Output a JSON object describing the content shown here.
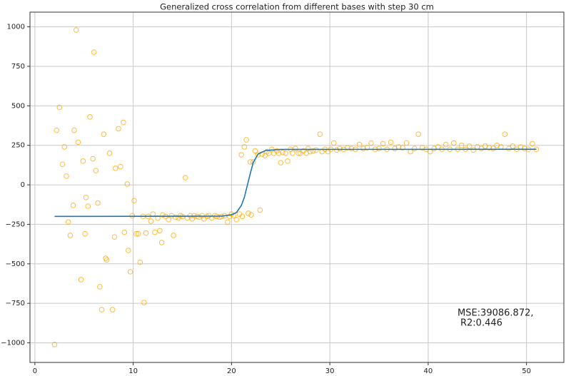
{
  "chart_data": {
    "type": "scatter",
    "title": "Generalized cross correlation from different bases with step 30 cm",
    "annotation": [
      "MSE:39086.872,",
      "R2:0.446"
    ],
    "xlim": [
      -0.5,
      53.8
    ],
    "ylim": [
      -1124,
      1093
    ],
    "xticks": [
      0,
      10,
      20,
      30,
      40,
      50
    ],
    "yticks": [
      {
        "value": -1000,
        "label": "−1000"
      },
      {
        "value": -750,
        "label": "−750"
      },
      {
        "value": -500,
        "label": "−500"
      },
      {
        "value": -250,
        "label": "−250"
      },
      0,
      250,
      500,
      750,
      1000
    ],
    "grid": true,
    "series": [
      {
        "type": "scatter",
        "color": "#ffa500",
        "x": [
          2,
          2.2,
          2.5,
          2.8,
          3,
          3.2,
          3.4,
          3.6,
          3.9,
          4,
          4.2,
          4.4,
          4.7,
          4.9,
          5.1,
          5.2,
          5.4,
          5.6,
          5.9,
          6,
          6.2,
          6.4,
          6.6,
          6.8,
          7,
          7.2,
          7.3,
          7.6,
          7.9,
          8.1,
          8.2,
          8.5,
          8.7,
          9,
          9.1,
          9.4,
          9.5,
          9.7,
          9.9,
          10.1,
          10.3,
          10.5,
          10.7,
          11,
          11.1,
          11.3,
          11.5,
          11.8,
          12,
          12.2,
          12.5,
          12.7,
          12.9,
          13,
          13.3,
          13.6,
          13.9,
          14.1,
          14.3,
          14.6,
          14.8,
          15,
          15.3,
          15.5,
          15.8,
          16,
          16.2,
          16.5,
          16.7,
          17,
          17.2,
          17.5,
          17.7,
          18,
          18.3,
          18.5,
          18.8,
          19,
          19.3,
          19.6,
          19.8,
          20,
          20.2,
          20.5,
          20.8,
          21,
          21.1,
          21.3,
          21.5,
          21.7,
          21.9,
          22,
          22.2,
          22.4,
          22.7,
          22.9,
          23.1,
          23.4,
          23.6,
          23.8,
          24.1,
          24.3,
          24.6,
          24.8,
          25,
          25.2,
          25.5,
          25.7,
          26,
          26.2,
          26.5,
          26.8,
          27,
          27.3,
          27.6,
          27.8,
          28,
          28.3,
          28.6,
          29,
          29.2,
          29.5,
          29.8,
          30.1,
          30.4,
          30.7,
          31,
          31.4,
          31.8,
          32.2,
          32.6,
          33,
          33.4,
          33.8,
          34.2,
          34.6,
          35,
          35.4,
          35.8,
          36.2,
          36.6,
          37,
          37.4,
          37.8,
          38.2,
          38.6,
          39,
          39.4,
          39.8,
          40.2,
          40.6,
          41,
          41.4,
          41.8,
          42.2,
          42.6,
          43,
          43.4,
          43.8,
          44.2,
          44.6,
          45,
          45.4,
          45.8,
          46.2,
          46.6,
          47,
          47.4,
          47.8,
          48.2,
          48.6,
          49,
          49.4,
          49.8,
          50.2,
          50.6,
          51
        ],
        "values": [
          -1010,
          345,
          490,
          130,
          240,
          55,
          -235,
          -320,
          -130,
          345,
          980,
          270,
          -600,
          150,
          -310,
          -80,
          -135,
          430,
          165,
          840,
          90,
          -115,
          -645,
          -790,
          320,
          -465,
          -475,
          200,
          -790,
          -330,
          105,
          355,
          115,
          395,
          -300,
          5,
          -415,
          -550,
          -195,
          -100,
          -310,
          -310,
          -490,
          -200,
          -745,
          -305,
          -200,
          -230,
          -185,
          -300,
          -210,
          -290,
          -365,
          -190,
          -200,
          -220,
          -195,
          -320,
          -205,
          -210,
          -195,
          -200,
          45,
          -210,
          -195,
          -215,
          -195,
          -200,
          -205,
          -195,
          -215,
          -200,
          -195,
          -210,
          -195,
          -200,
          -205,
          -200,
          -195,
          -235,
          -200,
          -185,
          -195,
          -220,
          -185,
          190,
          -200,
          240,
          285,
          -180,
          145,
          -190,
          145,
          215,
          190,
          -160,
          195,
          185,
          210,
          200,
          225,
          200,
          215,
          200,
          140,
          205,
          200,
          150,
          225,
          200,
          230,
          200,
          200,
          215,
          200,
          230,
          210,
          215,
          220,
          320,
          210,
          225,
          210,
          225,
          265,
          220,
          230,
          225,
          235,
          230,
          225,
          255,
          230,
          235,
          265,
          225,
          230,
          260,
          225,
          270,
          230,
          240,
          235,
          265,
          210,
          230,
          320,
          235,
          225,
          210,
          230,
          240,
          225,
          255,
          225,
          265,
          225,
          250,
          225,
          245,
          220,
          240,
          230,
          245,
          235,
          230,
          250,
          240,
          320,
          230,
          245,
          225,
          240,
          230,
          225,
          260,
          225
        ]
      },
      {
        "type": "line",
        "color": "#1f77b4",
        "x": [
          2,
          19,
          20,
          20.5,
          21,
          21.3,
          21.6,
          21.9,
          22.2,
          22.7,
          23.5,
          25,
          51
        ],
        "values": [
          -200,
          -198,
          -190,
          -175,
          -130,
          -80,
          -5,
          70,
          140,
          195,
          218,
          224,
          225
        ]
      }
    ]
  }
}
